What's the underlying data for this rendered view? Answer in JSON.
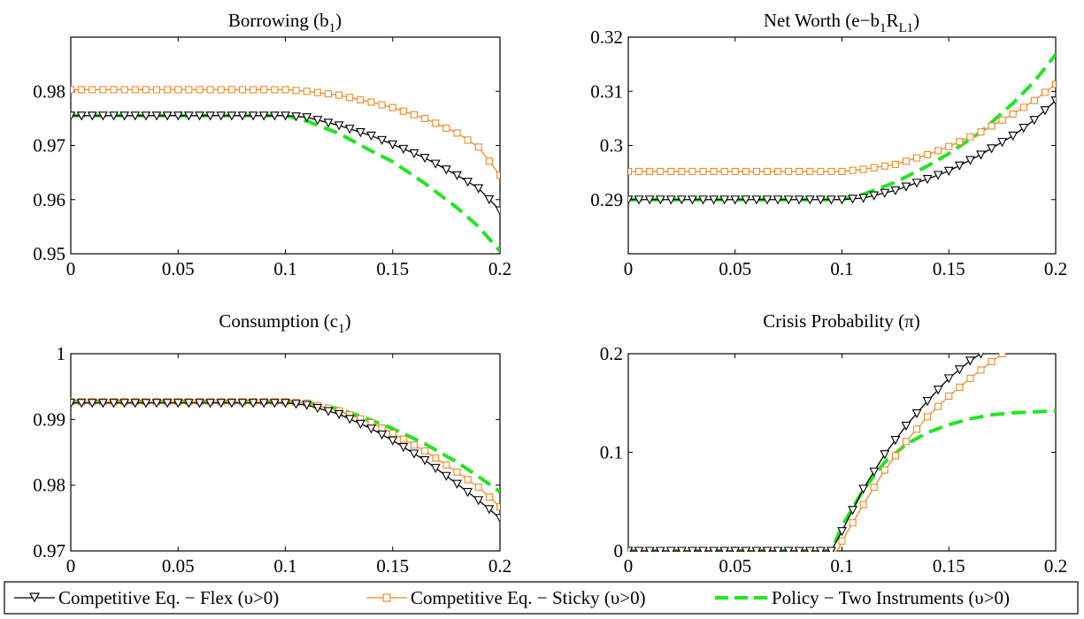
{
  "legend": [
    {
      "label": "Competitive Eq. − Flex (υ>0)"
    },
    {
      "label": "Competitive Eq. − Sticky (υ>0)"
    },
    {
      "label": "Policy − Two Instruments (υ>0)"
    }
  ],
  "colors": {
    "flex": "#000000",
    "sticky": "#f08a24",
    "policy": "#22e622"
  },
  "chart_data": [
    {
      "type": "line",
      "title": "Borrowing (b_1)",
      "xlim": [
        0,
        0.2
      ],
      "ylim": [
        0.95,
        0.99
      ],
      "xticks": [
        0,
        0.05,
        0.1,
        0.15,
        0.2
      ],
      "xtick_labels": [
        "0",
        "0.05",
        "0.1",
        "0.15",
        "0.2"
      ],
      "yticks": [
        0.95,
        0.96,
        0.97,
        0.98
      ],
      "ytick_labels": [
        "0.95",
        "0.96",
        "0.97",
        "0.98"
      ],
      "series": [
        {
          "name": "Competitive Eq. − Flex (υ>0)",
          "x": [
            0,
            0.025,
            0.05,
            0.075,
            0.1,
            0.11,
            0.125,
            0.14,
            0.15,
            0.165,
            0.18,
            0.19,
            0.2
          ],
          "y": [
            0.9755,
            0.9755,
            0.9755,
            0.9755,
            0.9755,
            0.9752,
            0.9737,
            0.9718,
            0.9702,
            0.9677,
            0.9645,
            0.9621,
            0.958
          ]
        },
        {
          "name": "Competitive Eq. − Sticky (υ>0)",
          "x": [
            0,
            0.025,
            0.05,
            0.075,
            0.1,
            0.11,
            0.125,
            0.14,
            0.15,
            0.165,
            0.18,
            0.19,
            0.2
          ],
          "y": [
            0.9803,
            0.9803,
            0.9803,
            0.9803,
            0.9803,
            0.98,
            0.9793,
            0.978,
            0.977,
            0.975,
            0.9723,
            0.9697,
            0.9645
          ]
        },
        {
          "name": "Policy − Two Instruments (υ>0)",
          "x": [
            0,
            0.025,
            0.05,
            0.075,
            0.1,
            0.11,
            0.125,
            0.14,
            0.15,
            0.165,
            0.18,
            0.19,
            0.2
          ],
          "y": [
            0.9755,
            0.9755,
            0.9755,
            0.9755,
            0.9755,
            0.9745,
            0.9722,
            0.969,
            0.967,
            0.963,
            0.9585,
            0.955,
            0.9505
          ]
        }
      ]
    },
    {
      "type": "line",
      "title": "Net Worth (e−b_1R_L1)",
      "xlim": [
        0,
        0.2
      ],
      "ylim": [
        0.28,
        0.32
      ],
      "xticks": [
        0,
        0.05,
        0.1,
        0.15,
        0.2
      ],
      "xtick_labels": [
        "0",
        "0.05",
        "0.1",
        "0.15",
        "0.2"
      ],
      "yticks": [
        0.29,
        0.3,
        0.31,
        0.32
      ],
      "ytick_labels": [
        "0.29",
        "0.3",
        "0.31",
        "0.32"
      ],
      "series": [
        {
          "name": "Competitive Eq. − Flex (υ>0)",
          "x": [
            0,
            0.025,
            0.05,
            0.075,
            0.1,
            0.11,
            0.125,
            0.14,
            0.15,
            0.165,
            0.18,
            0.19,
            0.2
          ],
          "y": [
            0.29,
            0.29,
            0.29,
            0.29,
            0.29,
            0.2903,
            0.2917,
            0.2938,
            0.2953,
            0.2983,
            0.3018,
            0.3047,
            0.3083
          ]
        },
        {
          "name": "Competitive Eq. − Sticky (υ>0)",
          "x": [
            0,
            0.025,
            0.05,
            0.075,
            0.1,
            0.11,
            0.125,
            0.14,
            0.15,
            0.165,
            0.18,
            0.19,
            0.2
          ],
          "y": [
            0.2952,
            0.2952,
            0.2952,
            0.2952,
            0.2952,
            0.2956,
            0.2965,
            0.2983,
            0.2998,
            0.3025,
            0.3058,
            0.3083,
            0.3113
          ]
        },
        {
          "name": "Policy − Two Instruments (υ>0)",
          "x": [
            0,
            0.025,
            0.05,
            0.075,
            0.1,
            0.11,
            0.125,
            0.14,
            0.15,
            0.165,
            0.18,
            0.19,
            0.2
          ],
          "y": [
            0.29,
            0.29,
            0.29,
            0.29,
            0.29,
            0.291,
            0.2932,
            0.2962,
            0.2985,
            0.3025,
            0.3078,
            0.3118,
            0.3168
          ]
        }
      ]
    },
    {
      "type": "line",
      "title": "Consumption (c_1)",
      "xlim": [
        0,
        0.2
      ],
      "ylim": [
        0.97,
        1.0
      ],
      "xticks": [
        0,
        0.05,
        0.1,
        0.15,
        0.2
      ],
      "xtick_labels": [
        "0",
        "0.05",
        "0.1",
        "0.15",
        "0.2"
      ],
      "yticks": [
        0.97,
        0.98,
        0.99,
        1.0
      ],
      "ytick_labels": [
        "0.97",
        "0.98",
        "0.99",
        "1"
      ],
      "series": [
        {
          "name": "Competitive Eq. − Flex (υ>0)",
          "x": [
            0,
            0.025,
            0.05,
            0.075,
            0.1,
            0.11,
            0.125,
            0.14,
            0.15,
            0.165,
            0.18,
            0.19,
            0.2
          ],
          "y": [
            0.9925,
            0.9925,
            0.9925,
            0.9925,
            0.9925,
            0.9922,
            0.9908,
            0.9886,
            0.9868,
            0.9838,
            0.9802,
            0.9777,
            0.975
          ]
        },
        {
          "name": "Competitive Eq. − Sticky (υ>0)",
          "x": [
            0,
            0.025,
            0.05,
            0.075,
            0.1,
            0.11,
            0.125,
            0.14,
            0.15,
            0.165,
            0.18,
            0.19,
            0.2
          ],
          "y": [
            0.9927,
            0.9927,
            0.9927,
            0.9927,
            0.9927,
            0.9925,
            0.9913,
            0.9895,
            0.9879,
            0.9852,
            0.982,
            0.9797,
            0.9767
          ]
        },
        {
          "name": "Policy − Two Instruments (υ>0)",
          "x": [
            0,
            0.025,
            0.05,
            0.075,
            0.1,
            0.11,
            0.125,
            0.14,
            0.15,
            0.165,
            0.18,
            0.19,
            0.2
          ],
          "y": [
            0.9927,
            0.9927,
            0.9927,
            0.9927,
            0.9927,
            0.9926,
            0.9916,
            0.9899,
            0.9886,
            0.9863,
            0.9835,
            0.9813,
            0.979
          ]
        }
      ]
    },
    {
      "type": "line",
      "title": "Crisis Probability (π)",
      "xlim": [
        0,
        0.2
      ],
      "ylim": [
        0,
        0.2
      ],
      "xticks": [
        0,
        0.05,
        0.1,
        0.15,
        0.2
      ],
      "xtick_labels": [
        "0",
        "0.05",
        "0.1",
        "0.15",
        "0.2"
      ],
      "yticks": [
        0,
        0.1,
        0.2
      ],
      "ytick_labels": [
        "0",
        "0.1",
        "0.2"
      ],
      "series": [
        {
          "name": "Competitive Eq. − Flex (υ>0)",
          "x": [
            0,
            0.025,
            0.05,
            0.075,
            0.095,
            0.1,
            0.11,
            0.12,
            0.13,
            0.14,
            0.15,
            0.16,
            0.165
          ],
          "y": [
            0,
            0,
            0,
            0,
            0,
            0.02,
            0.063,
            0.098,
            0.127,
            0.152,
            0.175,
            0.193,
            0.2
          ]
        },
        {
          "name": "Competitive Eq. − Sticky (υ>0)",
          "x": [
            0,
            0.025,
            0.05,
            0.075,
            0.098,
            0.1,
            0.11,
            0.12,
            0.13,
            0.14,
            0.15,
            0.16,
            0.17,
            0.175
          ],
          "y": [
            0,
            0,
            0,
            0,
            0,
            0.01,
            0.047,
            0.082,
            0.111,
            0.136,
            0.157,
            0.175,
            0.192,
            0.2
          ]
        },
        {
          "name": "Policy − Two Instruments (υ>0)",
          "x": [
            0,
            0.025,
            0.05,
            0.075,
            0.095,
            0.1,
            0.11,
            0.12,
            0.13,
            0.14,
            0.15,
            0.16,
            0.17,
            0.18,
            0.19,
            0.2
          ],
          "y": [
            0,
            0,
            0,
            0,
            0,
            0.025,
            0.062,
            0.09,
            0.108,
            0.12,
            0.128,
            0.134,
            0.138,
            0.14,
            0.141,
            0.142
          ]
        }
      ]
    }
  ]
}
